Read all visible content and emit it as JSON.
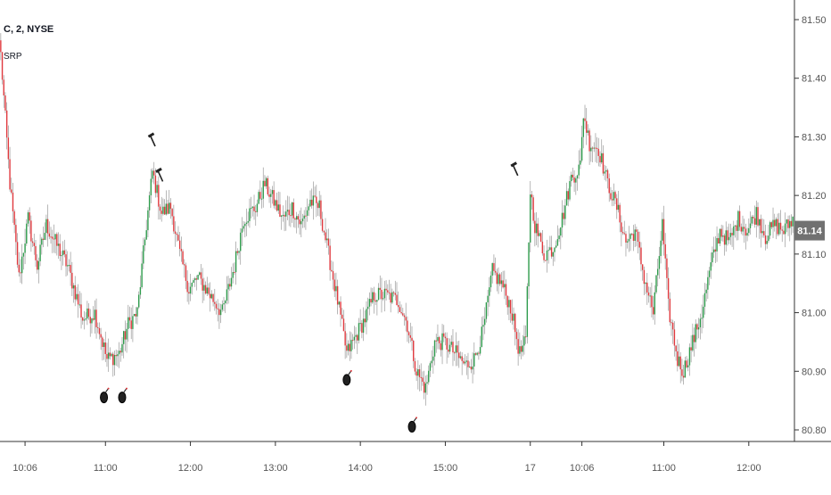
{
  "header": {
    "symbol": "C, 2, NYSE",
    "indicator": "SRP"
  },
  "colors": {
    "up": "#2e9b4c",
    "down": "#e0393e",
    "wick": "#999999",
    "grid": "#cccccc",
    "axis_text": "#555555",
    "price_badge_bg": "#717171",
    "price_badge_text": "#ffffff"
  },
  "chart_data": {
    "type": "candlestick",
    "title": "C, 2, NYSE",
    "indicator": "SRP",
    "y_axis": {
      "position": "right",
      "ylim": [
        80.78,
        81.55
      ],
      "ticks": [
        "81.50",
        "81.40",
        "81.30",
        "81.20",
        "81.10",
        "81.00",
        "80.90",
        "80.80"
      ]
    },
    "x_axis": {
      "tick_labels": [
        "10:06",
        "11:00",
        "12:00",
        "13:00",
        "14:00",
        "15:00",
        "17",
        "10:06",
        "11:00",
        "12:00"
      ],
      "tick_bar_index": [
        16,
        69,
        125,
        181,
        237,
        293,
        349,
        383,
        437,
        493
      ]
    },
    "last_price": "81.14",
    "anchors": [
      [
        0,
        81.44
      ],
      [
        6,
        81.22
      ],
      [
        12,
        81.06
      ],
      [
        18,
        81.16
      ],
      [
        24,
        81.08
      ],
      [
        30,
        81.15
      ],
      [
        36,
        81.12
      ],
      [
        44,
        81.08
      ],
      [
        54,
        80.99
      ],
      [
        62,
        81.0
      ],
      [
        70,
        80.92
      ],
      [
        78,
        80.93
      ],
      [
        84,
        80.98
      ],
      [
        90,
        81.0
      ],
      [
        96,
        81.15
      ],
      [
        100,
        81.24
      ],
      [
        106,
        81.17
      ],
      [
        112,
        81.18
      ],
      [
        118,
        81.1
      ],
      [
        124,
        81.04
      ],
      [
        130,
        81.06
      ],
      [
        138,
        81.03
      ],
      [
        146,
        81.0
      ],
      [
        154,
        81.08
      ],
      [
        160,
        81.16
      ],
      [
        168,
        81.18
      ],
      [
        174,
        81.22
      ],
      [
        180,
        81.19
      ],
      [
        186,
        81.16
      ],
      [
        192,
        81.18
      ],
      [
        198,
        81.15
      ],
      [
        204,
        81.19
      ],
      [
        210,
        81.18
      ],
      [
        216,
        81.1
      ],
      [
        222,
        81.02
      ],
      [
        228,
        80.93
      ],
      [
        234,
        80.96
      ],
      [
        240,
        80.99
      ],
      [
        246,
        81.03
      ],
      [
        254,
        81.03
      ],
      [
        262,
        81.02
      ],
      [
        268,
        80.98
      ],
      [
        274,
        80.9
      ],
      [
        280,
        80.87
      ],
      [
        286,
        80.95
      ],
      [
        292,
        80.95
      ],
      [
        300,
        80.93
      ],
      [
        306,
        80.91
      ],
      [
        312,
        80.92
      ],
      [
        318,
        80.97
      ],
      [
        324,
        81.07
      ],
      [
        330,
        81.05
      ],
      [
        336,
        81.01
      ],
      [
        342,
        80.93
      ],
      [
        346,
        80.95
      ],
      [
        349,
        81.21
      ],
      [
        352,
        81.15
      ],
      [
        358,
        81.1
      ],
      [
        364,
        81.11
      ],
      [
        370,
        81.16
      ],
      [
        376,
        81.23
      ],
      [
        382,
        81.25
      ],
      [
        384,
        81.34
      ],
      [
        388,
        81.29
      ],
      [
        394,
        81.28
      ],
      [
        400,
        81.22
      ],
      [
        406,
        81.18
      ],
      [
        412,
        81.12
      ],
      [
        418,
        81.14
      ],
      [
        424,
        81.06
      ],
      [
        430,
        81.0
      ],
      [
        436,
        81.15
      ],
      [
        440,
        81.01
      ],
      [
        446,
        80.92
      ],
      [
        450,
        80.9
      ],
      [
        456,
        80.95
      ],
      [
        462,
        81.0
      ],
      [
        468,
        81.08
      ],
      [
        474,
        81.14
      ],
      [
        480,
        81.12
      ],
      [
        486,
        81.16
      ],
      [
        492,
        81.14
      ],
      [
        498,
        81.17
      ],
      [
        504,
        81.13
      ],
      [
        510,
        81.15
      ],
      [
        516,
        81.14
      ],
      [
        522,
        81.16
      ]
    ],
    "candle_count": 523,
    "markers": [
      {
        "type": "bomb",
        "bar": 68,
        "price": 80.86
      },
      {
        "type": "bomb",
        "bar": 80,
        "price": 80.86
      },
      {
        "type": "hammer",
        "bar": 100,
        "price": 81.29
      },
      {
        "type": "hammer",
        "bar": 105,
        "price": 81.23
      },
      {
        "type": "bomb",
        "bar": 228,
        "price": 80.89
      },
      {
        "type": "bomb",
        "bar": 271,
        "price": 80.81
      },
      {
        "type": "hammer",
        "bar": 339,
        "price": 81.24
      }
    ]
  }
}
